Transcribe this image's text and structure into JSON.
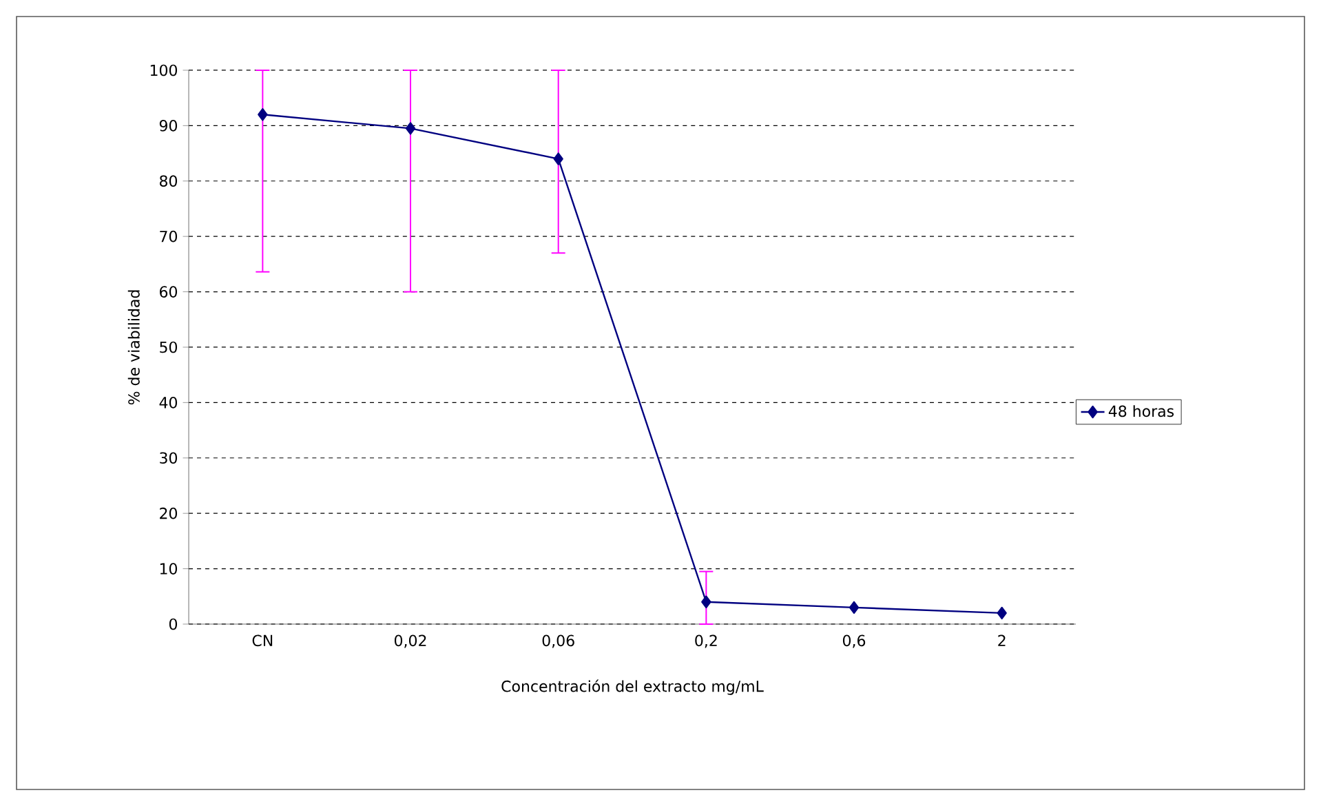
{
  "chart_data": {
    "type": "line",
    "xlabel": "Concentración del extracto mg/mL",
    "ylabel": "% de viabilidad",
    "categories": [
      "CN",
      "0,02",
      "0,06",
      "0,2",
      "0,6",
      "2"
    ],
    "series": [
      {
        "name": "48 horas",
        "color": "#000080",
        "values": [
          92,
          89.5,
          84,
          4,
          3,
          2
        ],
        "errors": [
          [
            63.6,
            100
          ],
          [
            60,
            100
          ],
          [
            67,
            100
          ],
          [
            0,
            9.5
          ],
          null,
          null
        ]
      }
    ],
    "ylim": [
      0,
      100
    ],
    "yticks": [
      0,
      10,
      20,
      30,
      40,
      50,
      60,
      70,
      80,
      90,
      100
    ],
    "grid": "y",
    "legend": "right",
    "marker": "diamond",
    "line_style": "solid"
  }
}
